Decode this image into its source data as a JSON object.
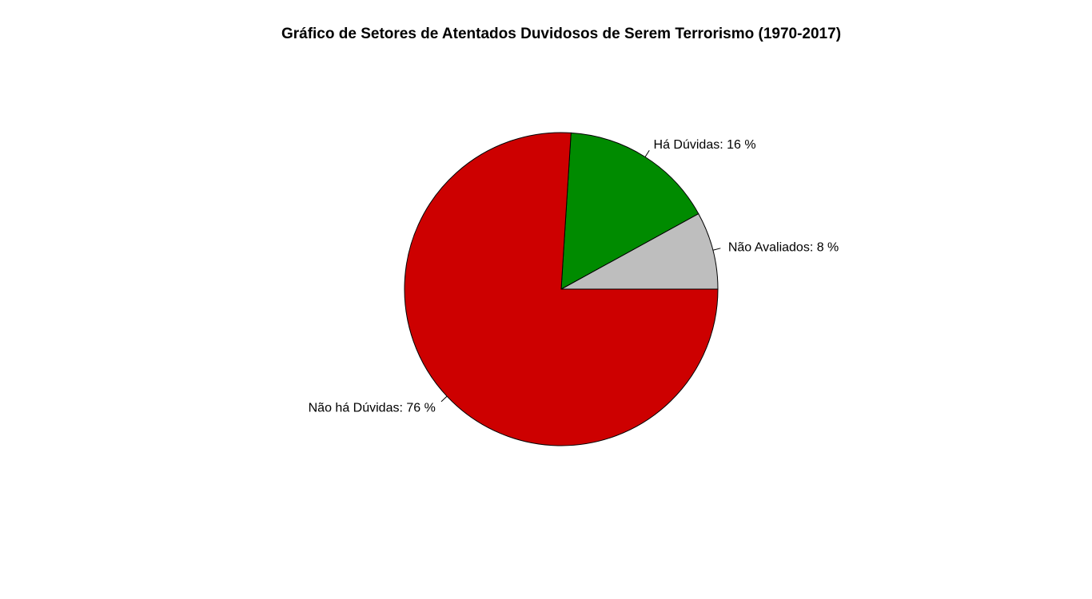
{
  "chart_data": {
    "type": "pie",
    "title": "Gráfico de Setores de Atentados Duvidosos de Serem Terrorismo (1970-2017)",
    "slices": [
      {
        "label": "Não Avaliados:  8 %",
        "value": 8,
        "color": "#bebebe"
      },
      {
        "label": "Há Dúvidas:  16 %",
        "value": 16,
        "color": "#008b00"
      },
      {
        "label": "Não há Dúvidas:  76 %",
        "value": 76,
        "color": "#cd0000"
      }
    ],
    "start_angle_deg": 0,
    "direction": "counterclockwise"
  }
}
